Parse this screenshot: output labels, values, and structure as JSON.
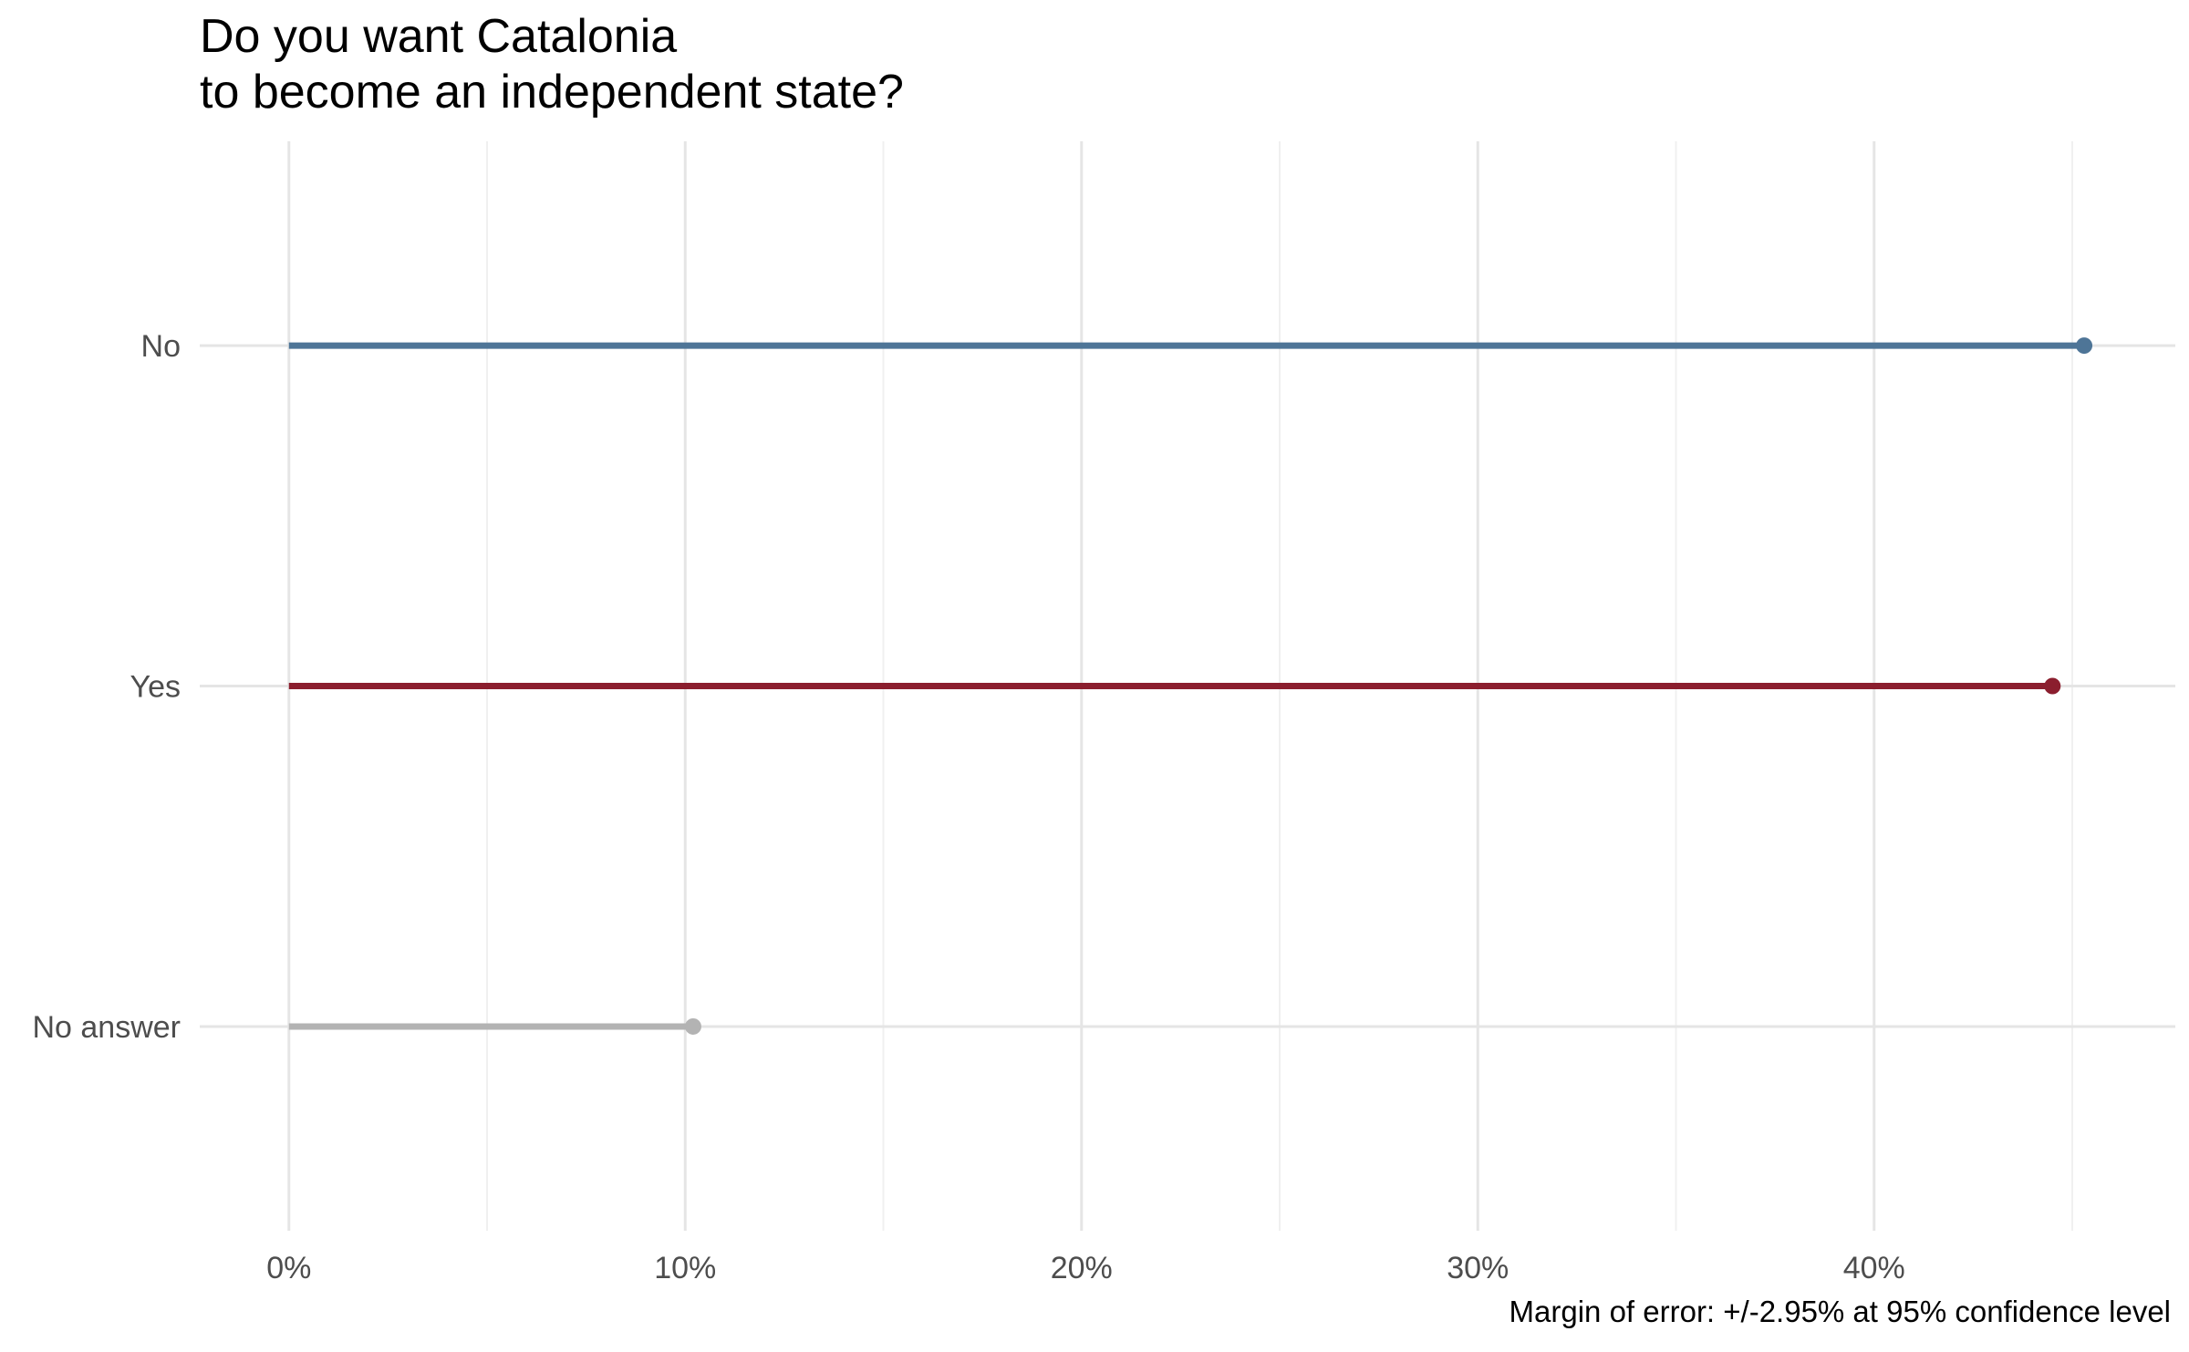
{
  "chart_data": {
    "type": "lollipop",
    "title": [
      "Do you want Catalonia",
      "to become an independent state?"
    ],
    "categories": [
      "No",
      "Yes",
      "No answer"
    ],
    "values": [
      45.3,
      44.5,
      10.2
    ],
    "colors": [
      "#4e7597",
      "#8b1e2e",
      "#b3b3b3"
    ],
    "x_ticks": [
      0,
      10,
      20,
      30,
      40
    ],
    "x_tick_labels": [
      "0%",
      "10%",
      "20%",
      "30%",
      "40%"
    ],
    "xlim": [
      -2.25,
      47.6
    ],
    "xlabel": "",
    "ylabel": "",
    "grid": true,
    "legend": "none",
    "caption": "Margin of error: +/-2.95% at 95% confidence level"
  }
}
